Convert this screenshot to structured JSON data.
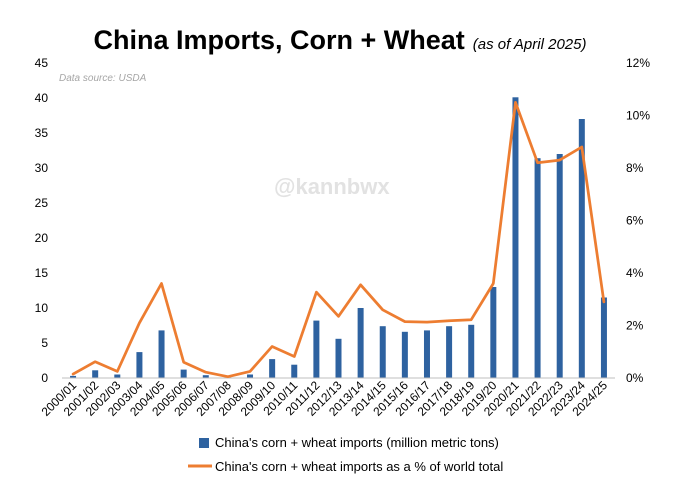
{
  "chart_data": {
    "type": "bar",
    "title": "China Imports, Corn + Wheat",
    "subtitle": "(as of April 2025)",
    "source_note": "Data source: USDA",
    "watermark": "@kannbwx",
    "categories": [
      "2000/01",
      "2001/02",
      "2002/03",
      "2003/04",
      "2004/05",
      "2005/06",
      "2006/07",
      "2007/08",
      "2008/09",
      "2009/10",
      "2010/11",
      "2011/12",
      "2012/13",
      "2013/14",
      "2014/15",
      "2015/16",
      "2016/17",
      "2017/18",
      "2018/19",
      "2019/20",
      "2020/21",
      "2021/22",
      "2022/23",
      "2023/24",
      "2024/25"
    ],
    "series": [
      {
        "name": "China's corn + wheat imports (million metric tons)",
        "type": "bar",
        "axis": "left",
        "color": "#2e62a0",
        "values": [
          0.3,
          1.1,
          0.5,
          3.7,
          6.8,
          1.2,
          0.4,
          0.2,
          0.5,
          2.7,
          1.9,
          8.2,
          5.6,
          10.0,
          7.4,
          6.6,
          6.8,
          7.4,
          7.6,
          13.0,
          40.1,
          31.4,
          32.0,
          37.0,
          11.5
        ]
      },
      {
        "name": "China's corn + wheat imports as a % of world total",
        "type": "line",
        "axis": "right",
        "color": "#ed7d31",
        "values": [
          0.15,
          0.62,
          0.25,
          2.1,
          3.6,
          0.6,
          0.22,
          0.05,
          0.25,
          1.2,
          0.82,
          3.27,
          2.35,
          3.55,
          2.6,
          2.15,
          2.13,
          2.18,
          2.22,
          3.6,
          10.5,
          8.2,
          8.3,
          8.8,
          2.9
        ]
      }
    ],
    "y_left": {
      "min": 0,
      "max": 45,
      "ticks": [
        0,
        5,
        10,
        15,
        20,
        25,
        30,
        35,
        40,
        45
      ]
    },
    "y_right": {
      "min": 0,
      "max": 12,
      "ticks": [
        0,
        2,
        4,
        6,
        8,
        10,
        12
      ],
      "tick_suffix": "%"
    },
    "legend_position": "bottom",
    "grid": false
  }
}
